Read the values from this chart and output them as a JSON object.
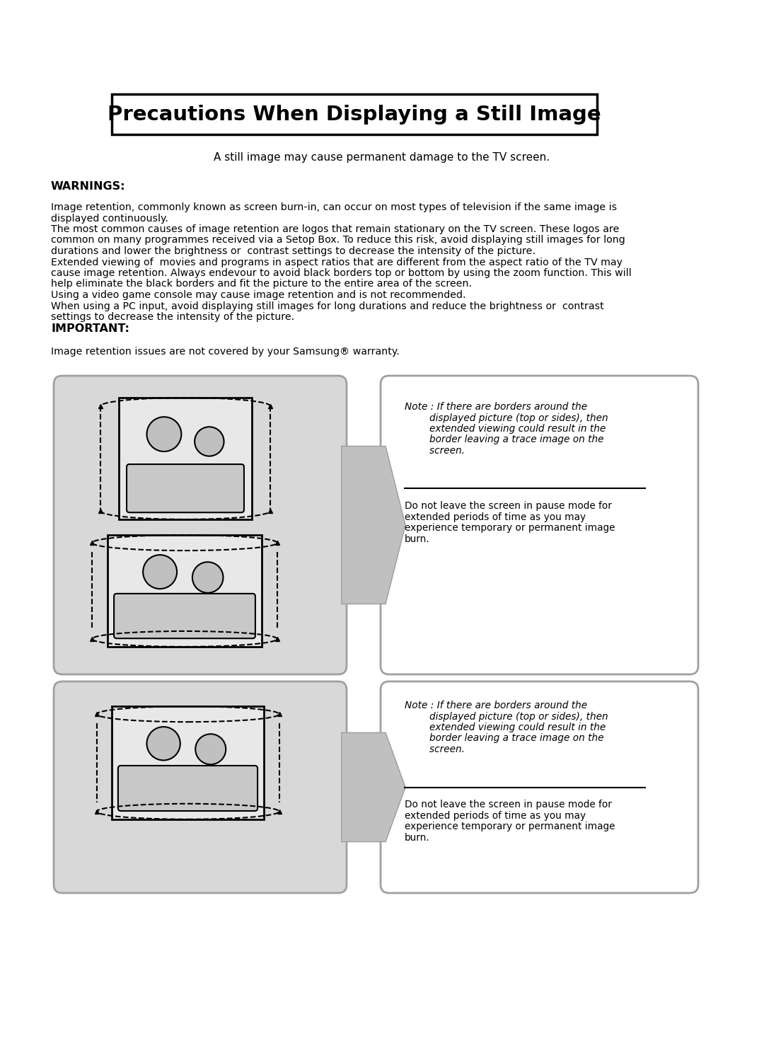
{
  "title": "Precautions When Displaying a Still Image",
  "subtitle": "A still image may cause permanent damage to the TV screen.",
  "warnings_label": "WARNINGS:",
  "warnings_text_lines": [
    "Image retention, commonly known as screen burn-in, can occur on most types of television if the same image is",
    "displayed continuously.",
    "The most common causes of image retention are logos that remain stationary on the TV screen. These logos are",
    "common on many programmes received via a Setop Box. To reduce this risk, avoid displaying still images for long",
    "durations and lower the brightness or  contrast settings to decrease the intensity of the picture.",
    "Extended viewing of  movies and programs in aspect ratios that are different from the aspect ratio of the TV may",
    "cause image retention. Always endevour to avoid black borders top or bottom by using the zoom function. This will",
    "help eliminate the black borders and fit the picture to the entire area of the screen.",
    "Using a video game console may cause image retention and is not recommended.",
    "When using a PC input, avoid displaying still images for long durations and reduce the brightness or  contrast",
    "settings to decrease the intensity of the picture."
  ],
  "important_label": "IMPORTANT:",
  "important_text": "Image retention issues are not covered by your Samsung® warranty.",
  "note_text_lines": [
    "Note : If there are borders around the",
    "        displayed picture (top or sides), then",
    "        extended viewing could result in the",
    "        border leaving a trace image on the",
    "        screen."
  ],
  "pause_text_lines": [
    "Do not leave the screen in pause mode for",
    "extended periods of time as you may",
    "experience temporary or permanent image",
    "burn."
  ],
  "bg_color": "#ffffff",
  "gray_box_color": "#d8d8d8",
  "arrow_color": "#c0c0c0",
  "arrow_border": "#a0a0a0"
}
